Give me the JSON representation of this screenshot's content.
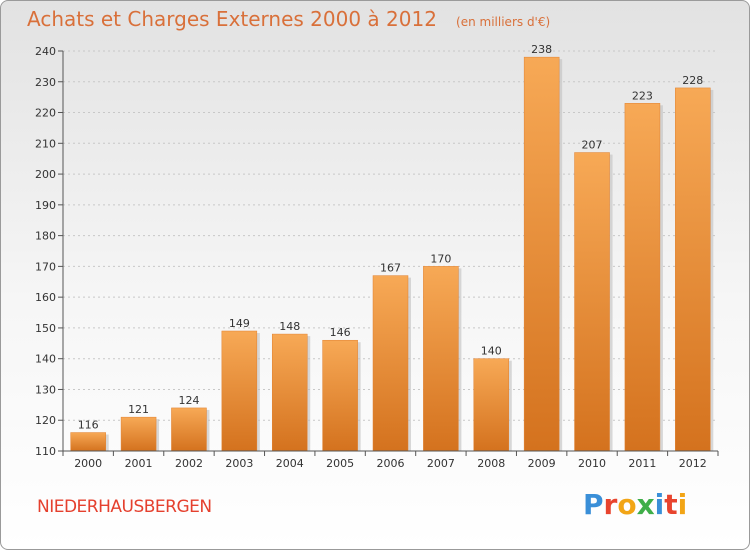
{
  "header": {
    "title": "Achats et Charges Externes 2000 à 2012",
    "subtitle": "(en milliers d'€)"
  },
  "footer": {
    "commune": "NIEDERHAUSBERGEN",
    "logo": [
      "P",
      "r",
      "o",
      "x",
      "i",
      "t",
      "i"
    ],
    "logo_colors": [
      "#3a8fd8",
      "#e8442e",
      "#f2a516",
      "#3fae49",
      "#3a8fd8",
      "#e8442e",
      "#f2a516"
    ]
  },
  "chart_data": {
    "type": "bar",
    "title": "Achats et Charges Externes 2000 à 2012",
    "subtitle": "(en milliers d'€)",
    "xlabel": "",
    "ylabel": "",
    "categories": [
      "2000",
      "2001",
      "2002",
      "2003",
      "2004",
      "2005",
      "2006",
      "2007",
      "2008",
      "2009",
      "2010",
      "2011",
      "2012"
    ],
    "values": [
      116,
      121,
      124,
      149,
      148,
      146,
      167,
      170,
      140,
      238,
      207,
      223,
      228
    ],
    "ylim": [
      110,
      240
    ],
    "yticks": [
      110,
      120,
      130,
      140,
      150,
      160,
      170,
      180,
      190,
      200,
      210,
      220,
      230,
      240
    ],
    "grid": true,
    "bar_color": "#f0913a",
    "bar_color_light": "#f7a956",
    "bar_color_dark": "#d4721e"
  }
}
